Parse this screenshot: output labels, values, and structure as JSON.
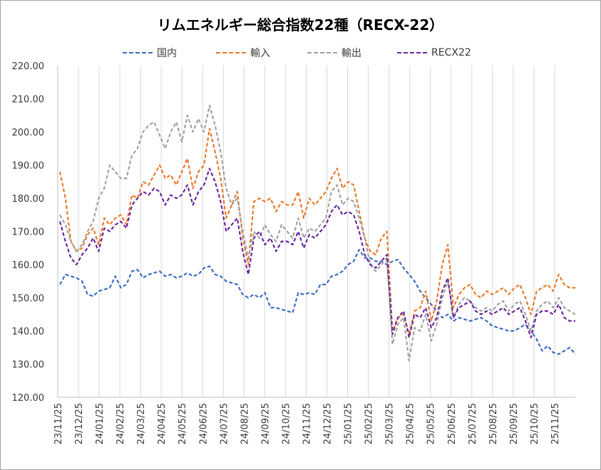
{
  "chart_data": {
    "type": "line",
    "title": "リムエネルギー総合指数22種（RECX-22）",
    "xlabel": "",
    "ylabel": "",
    "ylim": [
      120,
      220
    ],
    "y_ticks": [
      "120.00",
      "130.00",
      "140.00",
      "150.00",
      "160.00",
      "170.00",
      "180.00",
      "190.00",
      "200.00",
      "210.00",
      "220.00"
    ],
    "x_ticks": [
      "23/11/25",
      "23/12/25",
      "24/01/25",
      "24/02/25",
      "24/03/25",
      "24/04/25",
      "24/05/25",
      "24/06/25",
      "24/07/25",
      "24/08/25",
      "24/09/25",
      "24/10/25",
      "24/11/25",
      "24/12/25",
      "25/01/25",
      "25/02/25",
      "25/03/25",
      "25/04/25",
      "25/05/25",
      "25/06/25",
      "25/07/25",
      "25/08/25",
      "25/09/25",
      "25/10/25",
      "25/11/25"
    ],
    "grid": "vertical",
    "legend_position": "top",
    "series": [
      {
        "name": "国内",
        "color": "#4472c4",
        "values": [
          154.0,
          157.0,
          156.5,
          156.0,
          155.0,
          151.0,
          150.5,
          152.0,
          152.5,
          153.0,
          156.5,
          153.0,
          154.0,
          158.0,
          158.5,
          156.0,
          157.0,
          157.5,
          158.0,
          156.5,
          157.0,
          156.0,
          156.5,
          157.5,
          156.5,
          157.0,
          159.0,
          159.5,
          157.0,
          156.5,
          155.0,
          154.5,
          154.0,
          151.0,
          150.0,
          151.0,
          150.0,
          151.5,
          147.0,
          147.0,
          146.5,
          146.0,
          145.5,
          151.5,
          151.0,
          151.5,
          151.0,
          154.0,
          154.0,
          156.5,
          157.0,
          158.0,
          160.0,
          161.0,
          164.5,
          162.0,
          162.0,
          161.0,
          161.0,
          160.0,
          161.0,
          161.5,
          159.0,
          157.0,
          155.0,
          152.0,
          150.0,
          148.0,
          146.0,
          144.0,
          145.0,
          143.0,
          144.0,
          143.5,
          143.0,
          143.5,
          144.0,
          143.0,
          141.5,
          141.0,
          140.5,
          140.0,
          140.0,
          141.0,
          142.0,
          140.0,
          137.5,
          134.0,
          135.5,
          133.5,
          133.0,
          134.0,
          135.0,
          133.0
        ]
      },
      {
        "name": "輸入",
        "color": "#ed7d31",
        "values": [
          188.0,
          180.0,
          167.0,
          164.0,
          165.0,
          169.0,
          171.0,
          166.0,
          174.0,
          172.0,
          174.0,
          175.0,
          172.0,
          181.0,
          180.0,
          185.0,
          184.0,
          187.0,
          190.0,
          186.0,
          187.0,
          184.0,
          188.0,
          192.0,
          183.0,
          188.0,
          190.0,
          201.0,
          194.0,
          186.0,
          174.0,
          178.0,
          182.0,
          168.0,
          160.0,
          179.0,
          180.0,
          179.0,
          180.0,
          176.0,
          179.0,
          178.0,
          178.0,
          182.0,
          174.0,
          180.0,
          178.0,
          180.0,
          182.0,
          186.0,
          189.0,
          183.0,
          185.0,
          184.0,
          176.0,
          168.0,
          164.0,
          163.0,
          168.0,
          170.0,
          140.0,
          144.0,
          145.0,
          139.0,
          146.0,
          147.0,
          152.0,
          143.0,
          149.0,
          160.0,
          166.0,
          147.0,
          151.0,
          153.0,
          154.0,
          151.0,
          150.0,
          152.0,
          151.0,
          152.0,
          153.0,
          151.0,
          153.0,
          154.0,
          150.0,
          145.0,
          152.0,
          153.0,
          154.0,
          152.0,
          157.0,
          154.0,
          153.0,
          153.0
        ]
      },
      {
        "name": "輸出",
        "color": "#a5a5a5",
        "values": [
          175.0,
          172.0,
          167.0,
          164.0,
          166.0,
          170.0,
          173.0,
          180.0,
          183.0,
          190.0,
          188.0,
          186.0,
          186.0,
          193.0,
          195.0,
          200.0,
          202.0,
          203.0,
          199.0,
          195.0,
          200.0,
          203.0,
          197.0,
          205.0,
          200.0,
          204.0,
          200.0,
          208.0,
          202.0,
          194.0,
          183.0,
          178.0,
          180.0,
          170.0,
          162.0,
          170.0,
          168.0,
          172.0,
          169.0,
          167.0,
          172.0,
          170.0,
          168.0,
          174.0,
          168.0,
          171.0,
          170.0,
          172.0,
          174.0,
          182.0,
          184.0,
          178.0,
          180.0,
          179.0,
          174.0,
          168.0,
          160.0,
          158.0,
          160.0,
          162.0,
          136.0,
          142.0,
          144.0,
          131.0,
          141.0,
          140.0,
          145.0,
          137.0,
          142.0,
          150.0,
          155.0,
          144.0,
          148.0,
          150.0,
          149.0,
          147.0,
          146.0,
          147.0,
          146.0,
          148.0,
          149.0,
          146.0,
          148.0,
          149.0,
          145.0,
          140.0,
          146.0,
          148.0,
          149.0,
          147.0,
          150.0,
          147.0,
          146.0,
          145.0
        ]
      },
      {
        "name": "RECX22",
        "color": "#7030a0",
        "values": [
          173.0,
          167.0,
          162.0,
          160.0,
          163.0,
          165.0,
          168.0,
          164.0,
          171.0,
          170.0,
          172.0,
          173.0,
          171.0,
          178.0,
          180.0,
          182.0,
          181.0,
          183.0,
          182.0,
          178.0,
          181.0,
          180.0,
          181.0,
          184.0,
          178.0,
          182.0,
          184.0,
          189.0,
          185.0,
          179.0,
          170.0,
          172.0,
          174.0,
          164.0,
          157.0,
          168.0,
          170.0,
          166.0,
          168.0,
          164.0,
          167.0,
          167.0,
          166.0,
          170.0,
          165.0,
          169.0,
          168.0,
          170.0,
          172.0,
          176.0,
          178.0,
          175.0,
          176.0,
          175.0,
          170.0,
          163.0,
          160.0,
          159.0,
          161.0,
          163.0,
          139.0,
          144.0,
          146.0,
          138.0,
          145.0,
          144.0,
          147.0,
          141.0,
          144.0,
          152.0,
          156.0,
          144.0,
          147.0,
          148.0,
          149.0,
          146.0,
          145.0,
          146.0,
          145.0,
          146.0,
          147.0,
          145.0,
          146.0,
          147.0,
          143.0,
          138.0,
          145.0,
          146.0,
          146.0,
          145.0,
          148.0,
          144.0,
          143.0,
          143.0
        ]
      }
    ]
  }
}
